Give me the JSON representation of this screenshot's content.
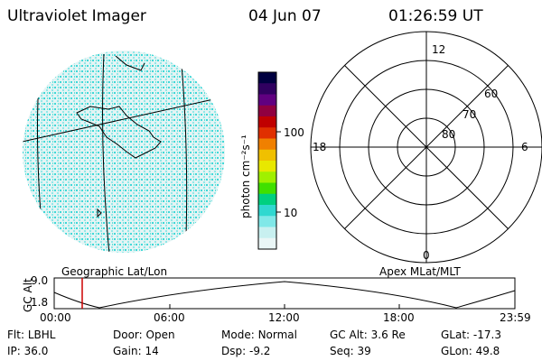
{
  "header": {
    "instrument": "Ultraviolet Imager",
    "date": "04 Jun 07",
    "time": "01:26:59 UT"
  },
  "colorbar": {
    "unit_label": "photon cm⁻²s⁻¹",
    "ticks": [
      "100",
      "10"
    ],
    "colors": [
      "#000040",
      "#300060",
      "#600080",
      "#900040",
      "#c00000",
      "#e03000",
      "#f08000",
      "#f0c000",
      "#e8e800",
      "#a0f000",
      "#40e000",
      "#00d080",
      "#30d8d0",
      "#80e8e8",
      "#c8f0f0",
      "#eaf6f6"
    ]
  },
  "polar": {
    "labels": {
      "top": "12",
      "bottom": "0",
      "left": "18",
      "right": "6",
      "r60": "60",
      "r70": "70",
      "r80": "80"
    }
  },
  "timeline": {
    "left_label": "Geographic Lat/Lon",
    "right_label": "Apex MLat/MLT",
    "axis_title": "GC Alt",
    "y_top": "9.0",
    "y_bottom": "1.8",
    "x_ticks": [
      "00:00",
      "06:00",
      "12:00",
      "18:00",
      "23:59"
    ]
  },
  "status": {
    "row1": [
      {
        "label": "Flt:",
        "value": "LBHL"
      },
      {
        "label": "Door:",
        "value": "Open"
      },
      {
        "label": "Mode:",
        "value": "Normal"
      },
      {
        "label": "GC Alt:",
        "value": "3.6 Re"
      },
      {
        "label": "GLat:",
        "value": "-17.3"
      }
    ],
    "row2": [
      {
        "label": "IP:",
        "value": "36.0"
      },
      {
        "label": "Gain:",
        "value": "14"
      },
      {
        "label": "Dsp:",
        "value": "-9.2"
      },
      {
        "label": "Seq:",
        "value": "39"
      },
      {
        "label": "GLon:",
        "value": "49.8"
      }
    ]
  }
}
